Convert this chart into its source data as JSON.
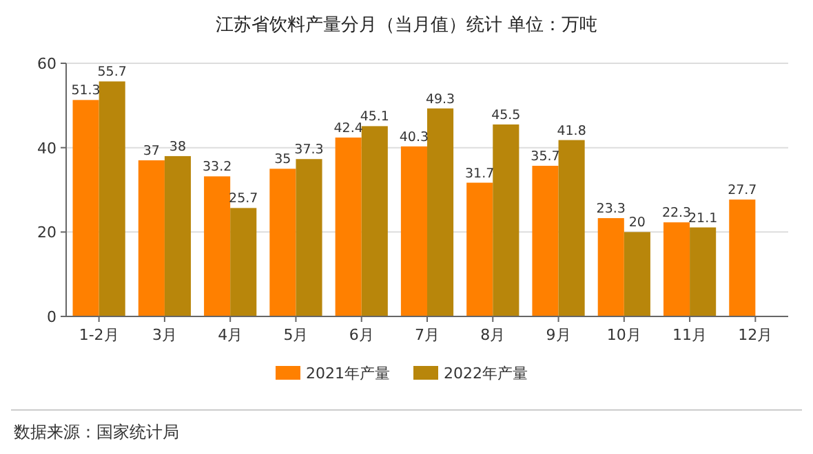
{
  "chart_data": {
    "type": "bar",
    "title": "江苏省饮料产量分月（当月值）统计  单位：万吨",
    "categories": [
      "1-2月",
      "3月",
      "4月",
      "5月",
      "6月",
      "7月",
      "8月",
      "9月",
      "10月",
      "11月",
      "12月"
    ],
    "series": [
      {
        "name": "2021年产量",
        "color": "#ff8000",
        "values": [
          51.3,
          37,
          33.2,
          35,
          42.4,
          40.3,
          31.7,
          35.7,
          23.3,
          22.3,
          27.7
        ]
      },
      {
        "name": "2022年产量",
        "color": "#b8860b",
        "values": [
          55.7,
          38,
          25.7,
          37.3,
          45.1,
          49.3,
          45.5,
          41.8,
          20,
          21.1,
          null
        ]
      }
    ],
    "ylim": [
      0,
      60
    ],
    "yticks": [
      0,
      20,
      40,
      60
    ],
    "grid": "y",
    "legend": "bottom",
    "data_labels": true,
    "annotations": [
      "数据来源：国家统计局"
    ]
  }
}
